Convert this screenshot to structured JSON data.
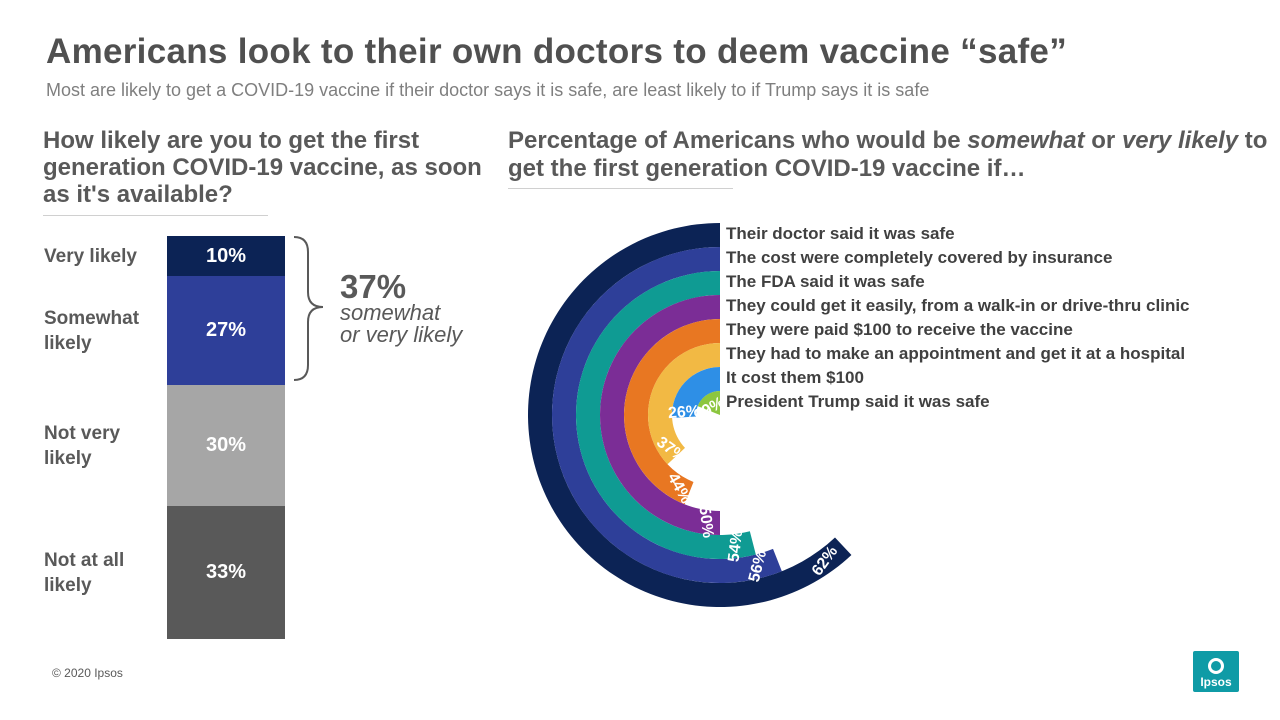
{
  "header": {
    "title": "Americans look to their own doctors to deem vaccine “safe”",
    "subtitle": "Most are likely to get a COVID-19 vaccine if their doctor says it is safe, are least likely to if Trump  says it is safe"
  },
  "left_question": "How likely are you to get the first generation COVID-19 vaccine, as soon as it's available?",
  "right_question": {
    "part1": "Percentage of Americans who would be ",
    "em1": "somewhat",
    "part2": " or ",
    "em2": "very likely",
    "part3": " to get the first generation COVID-19 vaccine if…"
  },
  "summary": {
    "value": "37%",
    "line1": "somewhat",
    "line2": "or very likely"
  },
  "chart_data": [
    {
      "type": "bar",
      "orientation": "stacked-vertical",
      "categories": [
        "Very likely",
        "Somewhat likely",
        "Not very likely",
        "Not at all likely"
      ],
      "values": [
        10,
        27,
        30,
        33
      ],
      "labels": [
        "10%",
        "27%",
        "30%",
        "33%"
      ],
      "colors": [
        "#0c2355",
        "#2e3f99",
        "#a6a6a6",
        "#595959"
      ]
    },
    {
      "type": "radial-bar",
      "categories": [
        "Their doctor said it was safe",
        "The cost were completely covered by insurance",
        "The FDA said it was safe",
        "They could get it easily, from a walk-in or drive-thru clinic",
        "They were paid $100 to receive the vaccine",
        "They had to make an appointment and get it at a hospital",
        "It cost them $100",
        "President Trump said it was safe"
      ],
      "values": [
        62,
        56,
        54,
        50,
        44,
        37,
        26,
        19
      ],
      "labels": [
        "62%",
        "56%",
        "54%",
        "50%",
        "44%",
        "37%",
        "26%",
        "19%"
      ],
      "colors": [
        "#0c2355",
        "#2e3f99",
        "#0f9b93",
        "#7b2d96",
        "#e87722",
        "#f2b944",
        "#2e8fe6",
        "#8cc63f"
      ]
    }
  ],
  "footer": {
    "copyright": "© 2020 Ipsos",
    "logo_text": "Ipsos"
  }
}
